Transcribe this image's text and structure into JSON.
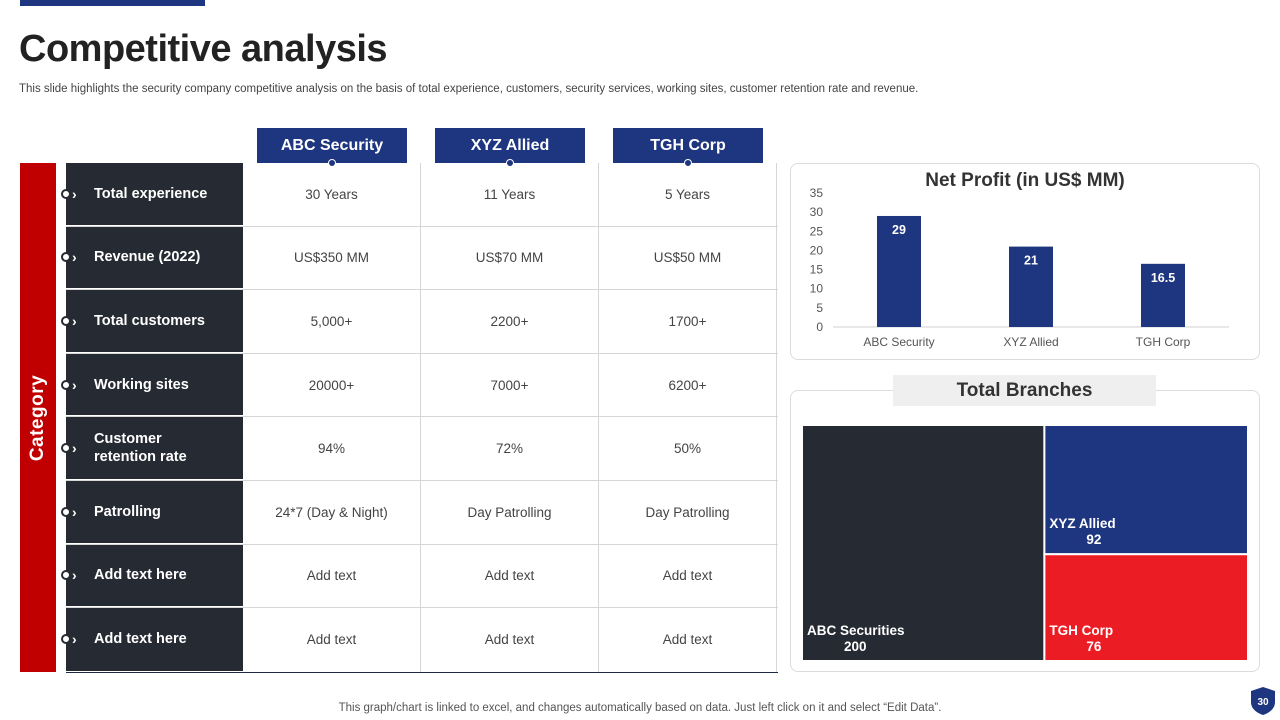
{
  "title": "Competitive analysis",
  "subtitle": "This slide highlights the security company competitive analysis on the basis of total experience, customers, security services, working sites, customer retention rate and revenue.",
  "category_label": "Category",
  "columns": [
    "ABC Security",
    "XYZ Allied",
    "TGH Corp"
  ],
  "rows": [
    {
      "label": "Total experience",
      "values": [
        "30 Years",
        "11 Years",
        "5 Years"
      ]
    },
    {
      "label": "Revenue (2022)",
      "values": [
        "US$350 MM",
        "US$70 MM",
        "US$50 MM"
      ]
    },
    {
      "label": "Total customers",
      "values": [
        "5,000+",
        "2200+",
        "1700+"
      ]
    },
    {
      "label": "Working sites",
      "values": [
        "20000+",
        "7000+",
        "6200+"
      ]
    },
    {
      "label": "Customer retention rate",
      "values": [
        "94%",
        "72%",
        "50%"
      ]
    },
    {
      "label": "Patrolling",
      "values": [
        "24*7 (Day & Night)",
        "Day Patrolling",
        "Day Patrolling"
      ]
    },
    {
      "label": "Add text here",
      "values": [
        "Add text",
        "Add text",
        "Add text"
      ]
    },
    {
      "label": "Add text here",
      "values": [
        "Add text",
        "Add text",
        "Add text"
      ]
    }
  ],
  "chart_data": [
    {
      "type": "bar",
      "title": "Net Profit (in US$ MM)",
      "categories": [
        "ABC Security",
        "XYZ Allied",
        "TGH Corp"
      ],
      "values": [
        29,
        21,
        16.5
      ],
      "data_labels": [
        "29",
        "21",
        "16.5"
      ],
      "ylim": [
        0,
        35
      ],
      "yticks": [
        0,
        5,
        10,
        15,
        20,
        25,
        30,
        35
      ],
      "color": "#1e3580",
      "grid": false
    },
    {
      "type": "treemap",
      "title": "Total Branches",
      "categories": [
        "ABC Securities",
        "XYZ Allied",
        "TGH Corp"
      ],
      "values": [
        200,
        92,
        76
      ],
      "colors": [
        "#262b33",
        "#1e3580",
        "#ec1c24"
      ]
    }
  ],
  "footer": "This graph/chart is linked to excel,  and changes automatically based on data. Just left click on it and select “Edit Data”.",
  "page_number": "30",
  "colors": {
    "navy": "#1e3580",
    "dark": "#262b33",
    "red": "#c00000",
    "bright_red": "#ec1c24"
  }
}
